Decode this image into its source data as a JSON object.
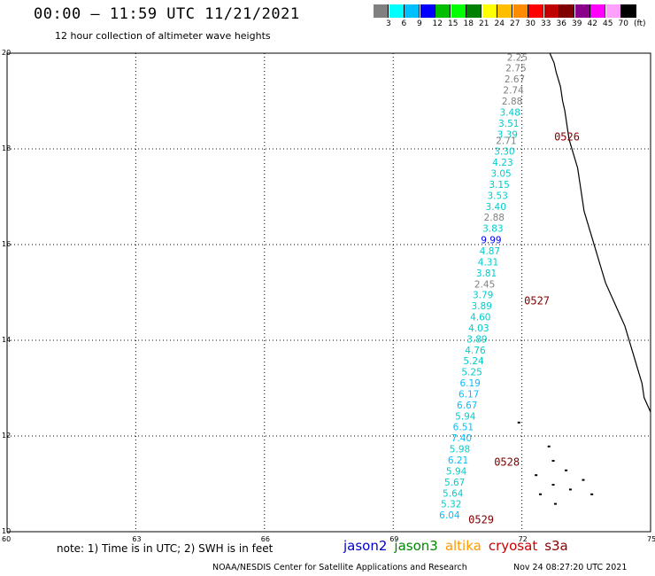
{
  "title": "00:00 – 11:59 UTC 11/21/2021",
  "subtitle": "12 hour collection of altimeter wave heights",
  "legend": {
    "colors": [
      "#808080",
      "#00ffff",
      "#00bfff",
      "#0000ff",
      "#00bf00",
      "#00ff00",
      "#008000",
      "#ffff00",
      "#ffbf00",
      "#ff8c00",
      "#ff0000",
      "#c00000",
      "#800000",
      "#8b008b",
      "#ff00ff",
      "#ffa0ff",
      "#000000"
    ],
    "labels": [
      "3",
      "6",
      "9",
      "12",
      "15",
      "18",
      "21",
      "24",
      "27",
      "30",
      "33",
      "36",
      "39",
      "42",
      "45",
      "70",
      "(ft)"
    ]
  },
  "axes": {
    "lon_labels": [
      "60",
      "63",
      "66",
      "69",
      "72",
      "75"
    ],
    "lat_labels": [
      "10",
      "12",
      "14",
      "16",
      "18",
      "20"
    ]
  },
  "wave_heights": [
    {
      "lat": 19.92,
      "lon": 71.9,
      "value": "2.25",
      "color": "#808080"
    },
    {
      "lat": 19.69,
      "lon": 71.87,
      "value": "2.75",
      "color": "#808080"
    },
    {
      "lat": 19.46,
      "lon": 71.84,
      "value": "2.67",
      "color": "#808080"
    },
    {
      "lat": 19.23,
      "lon": 71.81,
      "value": "2.74",
      "color": "#808080"
    },
    {
      "lat": 19.0,
      "lon": 71.78,
      "value": "2.88",
      "color": "#808080"
    },
    {
      "lat": 18.77,
      "lon": 71.73,
      "value": "3.48",
      "color": "#00cccc"
    },
    {
      "lat": 18.54,
      "lon": 71.7,
      "value": "3.51",
      "color": "#00cccc"
    },
    {
      "lat": 18.31,
      "lon": 71.67,
      "value": "3.39",
      "color": "#00cccc"
    },
    {
      "lat": 18.18,
      "lon": 71.64,
      "value": "2.71",
      "color": "#808080"
    },
    {
      "lat": 17.95,
      "lon": 71.6,
      "value": "3.30",
      "color": "#00cccc"
    },
    {
      "lat": 17.72,
      "lon": 71.56,
      "value": "4.23",
      "color": "#00cccc"
    },
    {
      "lat": 17.49,
      "lon": 71.52,
      "value": "3.05",
      "color": "#00cccc"
    },
    {
      "lat": 17.26,
      "lon": 71.48,
      "value": "3.15",
      "color": "#00cccc"
    },
    {
      "lat": 17.03,
      "lon": 71.44,
      "value": "3.53",
      "color": "#00cccc"
    },
    {
      "lat": 16.8,
      "lon": 71.4,
      "value": "3.40",
      "color": "#00cccc"
    },
    {
      "lat": 16.57,
      "lon": 71.36,
      "value": "2.88",
      "color": "#808080"
    },
    {
      "lat": 16.34,
      "lon": 71.33,
      "value": "3.83",
      "color": "#00cccc"
    },
    {
      "lat": 16.1,
      "lon": 71.29,
      "value": "9.99",
      "color": "#0000ff"
    },
    {
      "lat": 15.87,
      "lon": 71.26,
      "value": "4.87",
      "color": "#00cccc"
    },
    {
      "lat": 15.64,
      "lon": 71.22,
      "value": "4.31",
      "color": "#00cccc"
    },
    {
      "lat": 15.41,
      "lon": 71.18,
      "value": "3.81",
      "color": "#00cccc"
    },
    {
      "lat": 15.18,
      "lon": 71.14,
      "value": "2.45",
      "color": "#808080"
    },
    {
      "lat": 14.95,
      "lon": 71.1,
      "value": "3.79",
      "color": "#00cccc"
    },
    {
      "lat": 14.72,
      "lon": 71.07,
      "value": "3.89",
      "color": "#00cccc"
    },
    {
      "lat": 14.49,
      "lon": 71.04,
      "value": "4.60",
      "color": "#00cccc"
    },
    {
      "lat": 14.26,
      "lon": 71.0,
      "value": "4.03",
      "color": "#00cccc"
    },
    {
      "lat": 14.03,
      "lon": 70.96,
      "value": "3.89",
      "color": "#00cccc"
    },
    {
      "lat": 13.8,
      "lon": 70.92,
      "value": "4.76",
      "color": "#00cccc"
    },
    {
      "lat": 13.57,
      "lon": 70.88,
      "value": "5.24",
      "color": "#00cccc"
    },
    {
      "lat": 13.34,
      "lon": 70.84,
      "value": "5.25",
      "color": "#00cccc"
    },
    {
      "lat": 13.11,
      "lon": 70.8,
      "value": "6.19",
      "color": "#00bfff"
    },
    {
      "lat": 12.88,
      "lon": 70.77,
      "value": "6.17",
      "color": "#00bfff"
    },
    {
      "lat": 12.65,
      "lon": 70.73,
      "value": "6.67",
      "color": "#00bfff"
    },
    {
      "lat": 12.42,
      "lon": 70.69,
      "value": "5.94",
      "color": "#00cccc"
    },
    {
      "lat": 12.19,
      "lon": 70.64,
      "value": "6.51",
      "color": "#00bfff"
    },
    {
      "lat": 11.96,
      "lon": 70.6,
      "value": "7.40",
      "color": "#00bfff"
    },
    {
      "lat": 11.73,
      "lon": 70.56,
      "value": "5.98",
      "color": "#00cccc"
    },
    {
      "lat": 11.5,
      "lon": 70.52,
      "value": "6.21",
      "color": "#00bfff"
    },
    {
      "lat": 11.27,
      "lon": 70.48,
      "value": "5.94",
      "color": "#00cccc"
    },
    {
      "lat": 11.04,
      "lon": 70.44,
      "value": "5.67",
      "color": "#00cccc"
    },
    {
      "lat": 10.81,
      "lon": 70.4,
      "value": "5.64",
      "color": "#00cccc"
    },
    {
      "lat": 10.58,
      "lon": 70.36,
      "value": "5.32",
      "color": "#00cccc"
    },
    {
      "lat": 10.35,
      "lon": 70.32,
      "value": "6.04",
      "color": "#00bfff"
    }
  ],
  "pass_labels": [
    {
      "lat": 18.25,
      "lon": 73.0,
      "text": "0526"
    },
    {
      "lat": 14.82,
      "lon": 72.3,
      "text": "0527"
    },
    {
      "lat": 11.45,
      "lon": 71.6,
      "text": "0528"
    },
    {
      "lat": 10.25,
      "lon": 71.0,
      "text": "0529"
    }
  ],
  "note": "note: 1) Time is in UTC; 2) SWH is in feet",
  "satellites": [
    {
      "name": "jason2",
      "color": "#0000cc"
    },
    {
      "name": "jason3",
      "color": "#008800"
    },
    {
      "name": "altika",
      "color": "#ff9900"
    },
    {
      "name": "cryosat",
      "color": "#cc0000"
    },
    {
      "name": "s3a",
      "color": "#8b0000"
    }
  ],
  "credit": "NOAA/NESDIS Center for Satellite Applications and Research",
  "timestamp": "Nov 24 08:27:20 UTC 2021"
}
